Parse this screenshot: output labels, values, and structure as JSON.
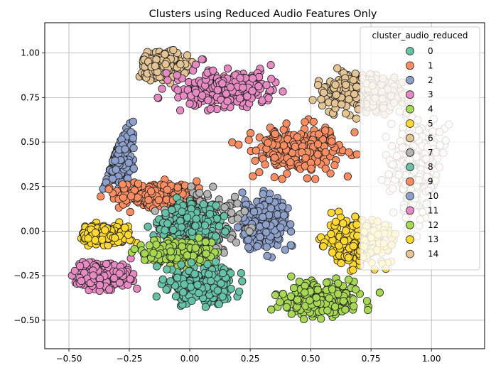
{
  "chart_data": {
    "type": "scatter",
    "title": "Clusters using Reduced Audio Features Only",
    "xlabel": "",
    "ylabel": "",
    "xlim": [
      -0.6,
      1.22
    ],
    "ylim": [
      -0.66,
      1.17
    ],
    "xticks": [
      -0.5,
      -0.25,
      0.0,
      0.25,
      0.5,
      0.75,
      1.0
    ],
    "xtick_labels": [
      "−0.50",
      "−0.25",
      "0.00",
      "0.25",
      "0.50",
      "0.75",
      "1.00"
    ],
    "yticks": [
      -0.5,
      -0.25,
      0.0,
      0.25,
      0.5,
      0.75,
      1.0
    ],
    "ytick_labels": [
      "−0.50",
      "−0.25",
      "0.00",
      "0.25",
      "0.50",
      "0.75",
      "1.00"
    ],
    "grid": true,
    "legend": {
      "title": "cluster_audio_reduced",
      "placement": "top-right"
    },
    "series": [
      {
        "name": "0",
        "color": "#66c2a5",
        "region": {
          "cx": 0.05,
          "cy": -0.3,
          "rx": 0.22,
          "ry": 0.16
        }
      },
      {
        "name": "1",
        "color": "#fc8d62",
        "region": {
          "cx": 0.45,
          "cy": 0.45,
          "rx": 0.3,
          "ry": 0.2
        }
      },
      {
        "name": "2",
        "color": "#8da0cb",
        "region": {
          "cx": -0.35,
          "cy": 0.45,
          "rx": 0.14,
          "ry": 0.25
        }
      },
      {
        "name": "3",
        "color": "#e78ac3",
        "region": {
          "cx": 0.15,
          "cy": 0.8,
          "rx": 0.33,
          "ry": 0.17
        }
      },
      {
        "name": "4",
        "color": "#a6d854",
        "region": {
          "cx": 0.55,
          "cy": -0.38,
          "rx": 0.25,
          "ry": 0.14
        }
      },
      {
        "name": "5",
        "color": "#ffd92f",
        "region": {
          "cx": 0.7,
          "cy": -0.05,
          "rx": 0.2,
          "ry": 0.22
        }
      },
      {
        "name": "6",
        "color": "#e5c494",
        "region": {
          "cx": 0.72,
          "cy": 0.78,
          "rx": 0.25,
          "ry": 0.17
        }
      },
      {
        "name": "7",
        "color": "#b3b3b3",
        "region": {
          "cx": 0.05,
          "cy": 0.05,
          "rx": 0.25,
          "ry": 0.25
        }
      },
      {
        "name": "8",
        "color": "#66c2a5",
        "region": {
          "cx": 0.0,
          "cy": 0.05,
          "rx": 0.2,
          "ry": 0.16
        }
      },
      {
        "name": "9",
        "color": "#fc8d62",
        "region": {
          "cx": -0.15,
          "cy": 0.2,
          "rx": 0.25,
          "ry": 0.1
        }
      },
      {
        "name": "10",
        "color": "#8da0cb",
        "region": {
          "cx": 0.3,
          "cy": 0.05,
          "rx": 0.15,
          "ry": 0.22
        }
      },
      {
        "name": "11",
        "color": "#e78ac3",
        "region": {
          "cx": -0.35,
          "cy": -0.25,
          "rx": 0.17,
          "ry": 0.12
        }
      },
      {
        "name": "12",
        "color": "#a6d854",
        "region": {
          "cx": -0.05,
          "cy": -0.12,
          "rx": 0.2,
          "ry": 0.1
        }
      },
      {
        "name": "13",
        "color": "#ffd92f",
        "region": {
          "cx": -0.35,
          "cy": -0.02,
          "rx": 0.15,
          "ry": 0.08
        }
      },
      {
        "name": "14",
        "color": "#e5c494",
        "region": {
          "cx": -0.12,
          "cy": 0.93,
          "rx": 0.15,
          "ry": 0.12
        }
      }
    ],
    "background_cluster": {
      "color": "#f6ecd8",
      "region": {
        "cx": 0.95,
        "cy": 0.35,
        "rx": 0.18,
        "ry": 0.4
      }
    }
  }
}
